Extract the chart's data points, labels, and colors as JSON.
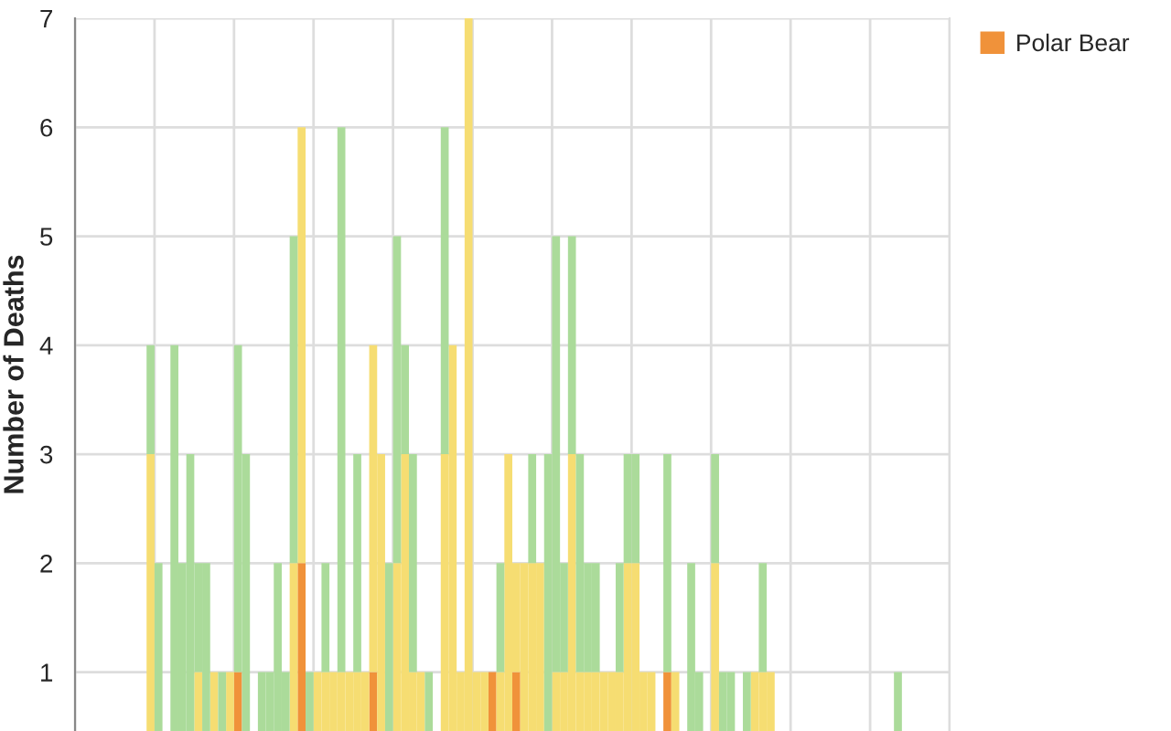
{
  "chart_data": {
    "type": "bar",
    "ylabel": "Number of Deaths",
    "stacked": true,
    "grid": true,
    "legend": "top right",
    "tick_labels": "y",
    "ylim": [
      0.46,
      7
    ],
    "yticks": [
      1,
      2,
      3,
      4,
      5,
      6,
      7
    ],
    "categories": [
      null,
      null,
      null,
      null,
      null,
      null,
      null,
      null,
      null,
      null,
      null,
      null,
      null,
      null,
      null,
      null,
      null,
      null,
      null,
      null,
      null,
      null,
      null,
      null,
      null,
      null,
      null,
      null,
      null,
      null,
      null,
      null,
      null,
      null,
      null,
      null,
      null,
      null,
      null,
      null,
      null,
      null,
      null,
      null,
      null,
      null,
      null,
      null,
      null,
      null,
      null,
      null,
      null,
      null,
      null,
      null,
      null,
      null,
      null,
      null,
      null,
      null,
      null,
      null,
      null,
      null,
      null,
      null,
      null,
      null,
      null,
      null,
      null,
      null,
      null,
      null,
      null,
      null,
      null,
      null,
      null,
      null,
      null,
      null,
      null,
      null,
      null,
      null,
      null,
      null,
      null,
      null,
      null,
      null,
      null,
      null,
      null,
      null,
      null,
      null,
      null,
      null,
      null,
      null,
      null,
      null,
      null,
      null,
      null,
      null
    ],
    "series": [
      {
        "name": "Polar Bear",
        "color": "#f0923a",
        "values": [
          null,
          null,
          null,
          null,
          null,
          null,
          null,
          null,
          null,
          null,
          null,
          null,
          null,
          null,
          null,
          null,
          null,
          null,
          null,
          null,
          1,
          null,
          null,
          null,
          null,
          null,
          null,
          null,
          2,
          null,
          null,
          null,
          null,
          null,
          null,
          null,
          null,
          1,
          null,
          null,
          null,
          null,
          null,
          null,
          null,
          null,
          null,
          null,
          null,
          null,
          null,
          null,
          1,
          null,
          null,
          1,
          null,
          null,
          null,
          null,
          null,
          null,
          null,
          null,
          null,
          null,
          null,
          null,
          null,
          null,
          null,
          null,
          null,
          null,
          1,
          null,
          null,
          null,
          null,
          null,
          null,
          null,
          null,
          null,
          null,
          null,
          null,
          null,
          null,
          null,
          null,
          null,
          null,
          null,
          null,
          null,
          null,
          null,
          null,
          null,
          null,
          null,
          null,
          null,
          null,
          null,
          null,
          null,
          null,
          null
        ]
      },
      {
        "color": "#f6dd72",
        "values": [
          null,
          null,
          null,
          null,
          null,
          null,
          null,
          null,
          null,
          3,
          null,
          null,
          null,
          null,
          null,
          1,
          null,
          1,
          null,
          1,
          null,
          null,
          null,
          null,
          null,
          null,
          null,
          2,
          4,
          null,
          1,
          1,
          1,
          1,
          1,
          1,
          1,
          3,
          3,
          null,
          2,
          3,
          1,
          1,
          null,
          null,
          3,
          4,
          1,
          7,
          1,
          1,
          null,
          1,
          3,
          1,
          2,
          2,
          2,
          null,
          1,
          1,
          3,
          1,
          1,
          1,
          1,
          1,
          1,
          2,
          2,
          1,
          1,
          null,
          null,
          1,
          null,
          null,
          null,
          null,
          2,
          null,
          null,
          null,
          null,
          1,
          1,
          1,
          null,
          null,
          null,
          null,
          null,
          null,
          null,
          null,
          null,
          null,
          null,
          null,
          null,
          null,
          null,
          null,
          null,
          null,
          null,
          null,
          null,
          null
        ]
      },
      {
        "color": "#abdb9a",
        "values": [
          null,
          null,
          null,
          null,
          null,
          null,
          null,
          null,
          null,
          1,
          2,
          null,
          4,
          2,
          3,
          1,
          2,
          null,
          1,
          null,
          3,
          3,
          null,
          1,
          1,
          2,
          1,
          3,
          null,
          1,
          null,
          1,
          null,
          5,
          null,
          2,
          null,
          null,
          null,
          2,
          3,
          1,
          2,
          null,
          1,
          null,
          3,
          null,
          null,
          null,
          null,
          null,
          null,
          1,
          null,
          null,
          null,
          1,
          null,
          3,
          4,
          1,
          2,
          2,
          1,
          1,
          null,
          null,
          1,
          1,
          1,
          null,
          null,
          null,
          2,
          null,
          null,
          2,
          1,
          null,
          1,
          1,
          1,
          null,
          1,
          null,
          1,
          null,
          null,
          null,
          null,
          null,
          null,
          null,
          null,
          null,
          null,
          null,
          null,
          null,
          null,
          null,
          null,
          1,
          null,
          null,
          null,
          null,
          null,
          null
        ]
      }
    ]
  }
}
